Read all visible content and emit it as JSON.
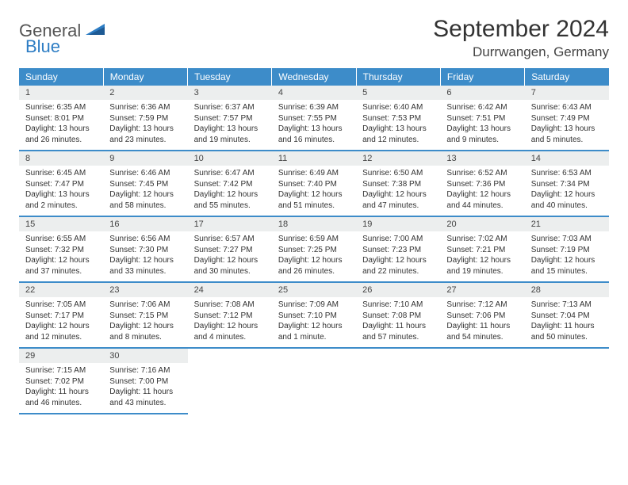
{
  "logo": {
    "word1": "General",
    "word2": "Blue"
  },
  "title": "September 2024",
  "location": "Durrwangen, Germany",
  "colors": {
    "header_bg": "#3d8cc9",
    "header_fg": "#ffffff",
    "daynum_bg": "#eceeee",
    "border": "#3d8cc9",
    "logo_accent": "#2d7dc4"
  },
  "weekdays": [
    "Sunday",
    "Monday",
    "Tuesday",
    "Wednesday",
    "Thursday",
    "Friday",
    "Saturday"
  ],
  "days": [
    {
      "n": "1",
      "sr": "6:35 AM",
      "ss": "8:01 PM",
      "dl": "13 hours and 26 minutes."
    },
    {
      "n": "2",
      "sr": "6:36 AM",
      "ss": "7:59 PM",
      "dl": "13 hours and 23 minutes."
    },
    {
      "n": "3",
      "sr": "6:37 AM",
      "ss": "7:57 PM",
      "dl": "13 hours and 19 minutes."
    },
    {
      "n": "4",
      "sr": "6:39 AM",
      "ss": "7:55 PM",
      "dl": "13 hours and 16 minutes."
    },
    {
      "n": "5",
      "sr": "6:40 AM",
      "ss": "7:53 PM",
      "dl": "13 hours and 12 minutes."
    },
    {
      "n": "6",
      "sr": "6:42 AM",
      "ss": "7:51 PM",
      "dl": "13 hours and 9 minutes."
    },
    {
      "n": "7",
      "sr": "6:43 AM",
      "ss": "7:49 PM",
      "dl": "13 hours and 5 minutes."
    },
    {
      "n": "8",
      "sr": "6:45 AM",
      "ss": "7:47 PM",
      "dl": "13 hours and 2 minutes."
    },
    {
      "n": "9",
      "sr": "6:46 AM",
      "ss": "7:45 PM",
      "dl": "12 hours and 58 minutes."
    },
    {
      "n": "10",
      "sr": "6:47 AM",
      "ss": "7:42 PM",
      "dl": "12 hours and 55 minutes."
    },
    {
      "n": "11",
      "sr": "6:49 AM",
      "ss": "7:40 PM",
      "dl": "12 hours and 51 minutes."
    },
    {
      "n": "12",
      "sr": "6:50 AM",
      "ss": "7:38 PM",
      "dl": "12 hours and 47 minutes."
    },
    {
      "n": "13",
      "sr": "6:52 AM",
      "ss": "7:36 PM",
      "dl": "12 hours and 44 minutes."
    },
    {
      "n": "14",
      "sr": "6:53 AM",
      "ss": "7:34 PM",
      "dl": "12 hours and 40 minutes."
    },
    {
      "n": "15",
      "sr": "6:55 AM",
      "ss": "7:32 PM",
      "dl": "12 hours and 37 minutes."
    },
    {
      "n": "16",
      "sr": "6:56 AM",
      "ss": "7:30 PM",
      "dl": "12 hours and 33 minutes."
    },
    {
      "n": "17",
      "sr": "6:57 AM",
      "ss": "7:27 PM",
      "dl": "12 hours and 30 minutes."
    },
    {
      "n": "18",
      "sr": "6:59 AM",
      "ss": "7:25 PM",
      "dl": "12 hours and 26 minutes."
    },
    {
      "n": "19",
      "sr": "7:00 AM",
      "ss": "7:23 PM",
      "dl": "12 hours and 22 minutes."
    },
    {
      "n": "20",
      "sr": "7:02 AM",
      "ss": "7:21 PM",
      "dl": "12 hours and 19 minutes."
    },
    {
      "n": "21",
      "sr": "7:03 AM",
      "ss": "7:19 PM",
      "dl": "12 hours and 15 minutes."
    },
    {
      "n": "22",
      "sr": "7:05 AM",
      "ss": "7:17 PM",
      "dl": "12 hours and 12 minutes."
    },
    {
      "n": "23",
      "sr": "7:06 AM",
      "ss": "7:15 PM",
      "dl": "12 hours and 8 minutes."
    },
    {
      "n": "24",
      "sr": "7:08 AM",
      "ss": "7:12 PM",
      "dl": "12 hours and 4 minutes."
    },
    {
      "n": "25",
      "sr": "7:09 AM",
      "ss": "7:10 PM",
      "dl": "12 hours and 1 minute."
    },
    {
      "n": "26",
      "sr": "7:10 AM",
      "ss": "7:08 PM",
      "dl": "11 hours and 57 minutes."
    },
    {
      "n": "27",
      "sr": "7:12 AM",
      "ss": "7:06 PM",
      "dl": "11 hours and 54 minutes."
    },
    {
      "n": "28",
      "sr": "7:13 AM",
      "ss": "7:04 PM",
      "dl": "11 hours and 50 minutes."
    },
    {
      "n": "29",
      "sr": "7:15 AM",
      "ss": "7:02 PM",
      "dl": "11 hours and 46 minutes."
    },
    {
      "n": "30",
      "sr": "7:16 AM",
      "ss": "7:00 PM",
      "dl": "11 hours and 43 minutes."
    }
  ],
  "labels": {
    "sunrise": "Sunrise:",
    "sunset": "Sunset:",
    "daylight": "Daylight:"
  }
}
